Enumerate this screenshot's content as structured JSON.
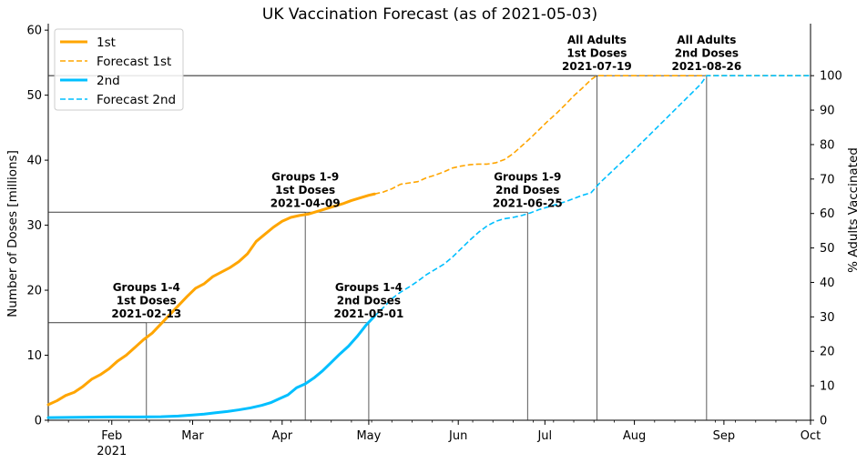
{
  "chart_data": {
    "type": "line",
    "title": "UK Vaccination Forecast (as of 2021-05-03)",
    "xlabel": "",
    "ylabel": "Number of Doses [millions]",
    "ylabel_right": "% Adults Vaccinated",
    "xlim": [
      "2021-01-10",
      "2021-10-01"
    ],
    "ylim": [
      0,
      61
    ],
    "ylim_right_equiv": {
      "percent_100_at_millions": 53
    },
    "x_ticks": [
      {
        "date": "2021-02-01",
        "label": "Feb",
        "sublabel": "2021"
      },
      {
        "date": "2021-03-01",
        "label": "Mar",
        "sublabel": ""
      },
      {
        "date": "2021-04-01",
        "label": "Apr",
        "sublabel": ""
      },
      {
        "date": "2021-05-01",
        "label": "May",
        "sublabel": ""
      },
      {
        "date": "2021-06-01",
        "label": "Jun",
        "sublabel": ""
      },
      {
        "date": "2021-07-01",
        "label": "Jul",
        "sublabel": ""
      },
      {
        "date": "2021-08-01",
        "label": "Aug",
        "sublabel": ""
      },
      {
        "date": "2021-09-01",
        "label": "Sep",
        "sublabel": ""
      },
      {
        "date": "2021-10-01",
        "label": "Oct",
        "sublabel": ""
      }
    ],
    "y_ticks": [
      0,
      10,
      20,
      30,
      40,
      50,
      60
    ],
    "y_ticks_right": [
      0,
      10,
      20,
      30,
      40,
      50,
      60,
      70,
      80,
      90,
      100
    ],
    "grid": false,
    "legend": "top-left",
    "series": [
      {
        "name": "1st",
        "style": "solid",
        "color": "#ffa500",
        "points": [
          [
            "2021-01-10",
            2.4
          ],
          [
            "2021-01-13",
            3.0
          ],
          [
            "2021-01-16",
            3.8
          ],
          [
            "2021-01-19",
            4.3
          ],
          [
            "2021-01-22",
            5.2
          ],
          [
            "2021-01-25",
            6.3
          ],
          [
            "2021-01-28",
            7.0
          ],
          [
            "2021-01-31",
            7.9
          ],
          [
            "2021-02-03",
            9.1
          ],
          [
            "2021-02-06",
            10.0
          ],
          [
            "2021-02-09",
            11.2
          ],
          [
            "2021-02-12",
            12.4
          ],
          [
            "2021-02-15",
            13.4
          ],
          [
            "2021-02-18",
            14.8
          ],
          [
            "2021-02-21",
            16.2
          ],
          [
            "2021-02-24",
            17.6
          ],
          [
            "2021-02-27",
            19.0
          ],
          [
            "2021-03-02",
            20.3
          ],
          [
            "2021-03-05",
            21.0
          ],
          [
            "2021-03-08",
            22.1
          ],
          [
            "2021-03-11",
            22.8
          ],
          [
            "2021-03-14",
            23.5
          ],
          [
            "2021-03-17",
            24.4
          ],
          [
            "2021-03-20",
            25.6
          ],
          [
            "2021-03-23",
            27.5
          ],
          [
            "2021-03-26",
            28.6
          ],
          [
            "2021-03-29",
            29.7
          ],
          [
            "2021-04-01",
            30.6
          ],
          [
            "2021-04-04",
            31.2
          ],
          [
            "2021-04-07",
            31.5
          ],
          [
            "2021-04-10",
            31.7
          ],
          [
            "2021-04-13",
            32.1
          ],
          [
            "2021-04-16",
            32.5
          ],
          [
            "2021-04-19",
            32.9
          ],
          [
            "2021-04-22",
            33.3
          ],
          [
            "2021-04-25",
            33.8
          ],
          [
            "2021-04-28",
            34.2
          ],
          [
            "2021-05-01",
            34.6
          ],
          [
            "2021-05-03",
            34.8
          ]
        ]
      },
      {
        "name": "Forecast 1st",
        "style": "dashed",
        "color": "#ffa500",
        "points": [
          [
            "2021-05-03",
            34.8
          ],
          [
            "2021-05-06",
            35.1
          ],
          [
            "2021-05-09",
            35.6
          ],
          [
            "2021-05-12",
            36.3
          ],
          [
            "2021-05-15",
            36.5
          ],
          [
            "2021-05-18",
            36.7
          ],
          [
            "2021-05-21",
            37.3
          ],
          [
            "2021-05-24",
            37.7
          ],
          [
            "2021-05-27",
            38.2
          ],
          [
            "2021-05-30",
            38.8
          ],
          [
            "2021-06-02",
            39.1
          ],
          [
            "2021-06-05",
            39.3
          ],
          [
            "2021-06-08",
            39.4
          ],
          [
            "2021-06-11",
            39.4
          ],
          [
            "2021-06-14",
            39.6
          ],
          [
            "2021-06-17",
            40.1
          ],
          [
            "2021-06-20",
            41.0
          ],
          [
            "2021-06-23",
            42.2
          ],
          [
            "2021-06-26",
            43.4
          ],
          [
            "2021-06-29",
            44.7
          ],
          [
            "2021-07-02",
            46.0
          ],
          [
            "2021-07-05",
            47.2
          ],
          [
            "2021-07-08",
            48.5
          ],
          [
            "2021-07-11",
            49.9
          ],
          [
            "2021-07-14",
            51.1
          ],
          [
            "2021-07-17",
            52.4
          ],
          [
            "2021-07-19",
            53.0
          ],
          [
            "2021-07-25",
            53.0
          ],
          [
            "2021-08-10",
            53.0
          ],
          [
            "2021-09-01",
            53.0
          ],
          [
            "2021-10-01",
            53.0
          ]
        ]
      },
      {
        "name": "2nd",
        "style": "solid",
        "color": "#00bfff",
        "points": [
          [
            "2021-01-10",
            0.4
          ],
          [
            "2021-01-20",
            0.45
          ],
          [
            "2021-02-01",
            0.5
          ],
          [
            "2021-02-10",
            0.5
          ],
          [
            "2021-02-18",
            0.55
          ],
          [
            "2021-02-24",
            0.65
          ],
          [
            "2021-03-01",
            0.8
          ],
          [
            "2021-03-05",
            0.95
          ],
          [
            "2021-03-09",
            1.15
          ],
          [
            "2021-03-13",
            1.35
          ],
          [
            "2021-03-17",
            1.6
          ],
          [
            "2021-03-21",
            1.9
          ],
          [
            "2021-03-25",
            2.3
          ],
          [
            "2021-03-28",
            2.7
          ],
          [
            "2021-03-31",
            3.3
          ],
          [
            "2021-04-03",
            3.9
          ],
          [
            "2021-04-06",
            5.0
          ],
          [
            "2021-04-09",
            5.6
          ],
          [
            "2021-04-12",
            6.5
          ],
          [
            "2021-04-15",
            7.6
          ],
          [
            "2021-04-18",
            8.9
          ],
          [
            "2021-04-21",
            10.2
          ],
          [
            "2021-04-24",
            11.4
          ],
          [
            "2021-04-27",
            12.9
          ],
          [
            "2021-04-30",
            14.6
          ],
          [
            "2021-05-03",
            16.0
          ]
        ]
      },
      {
        "name": "Forecast 2nd",
        "style": "dashed",
        "color": "#00bfff",
        "points": [
          [
            "2021-05-03",
            16.0
          ],
          [
            "2021-05-06",
            17.3
          ],
          [
            "2021-05-09",
            18.7
          ],
          [
            "2021-05-12",
            19.7
          ],
          [
            "2021-05-15",
            20.5
          ],
          [
            "2021-05-18",
            21.4
          ],
          [
            "2021-05-21",
            22.4
          ],
          [
            "2021-05-24",
            23.2
          ],
          [
            "2021-05-27",
            24.0
          ],
          [
            "2021-05-30",
            25.1
          ],
          [
            "2021-06-02",
            26.4
          ],
          [
            "2021-06-05",
            27.7
          ],
          [
            "2021-06-08",
            28.9
          ],
          [
            "2021-06-11",
            29.9
          ],
          [
            "2021-06-14",
            30.6
          ],
          [
            "2021-06-17",
            31.0
          ],
          [
            "2021-06-20",
            31.2
          ],
          [
            "2021-06-23",
            31.5
          ],
          [
            "2021-06-26",
            31.9
          ],
          [
            "2021-06-29",
            32.4
          ],
          [
            "2021-07-02",
            32.8
          ],
          [
            "2021-07-05",
            33.2
          ],
          [
            "2021-07-08",
            33.6
          ],
          [
            "2021-07-11",
            34.1
          ],
          [
            "2021-07-14",
            34.6
          ],
          [
            "2021-07-17",
            35.0
          ],
          [
            "2021-07-20",
            36.5
          ],
          [
            "2021-07-25",
            38.6
          ],
          [
            "2021-07-30",
            40.7
          ],
          [
            "2021-08-04",
            42.9
          ],
          [
            "2021-08-09",
            45.1
          ],
          [
            "2021-08-14",
            47.3
          ],
          [
            "2021-08-19",
            49.5
          ],
          [
            "2021-08-24",
            51.7
          ],
          [
            "2021-08-26",
            53.0
          ],
          [
            "2021-09-10",
            53.0
          ],
          [
            "2021-10-01",
            53.0
          ]
        ]
      }
    ],
    "annotations": [
      {
        "date": "2021-02-13",
        "value": 15,
        "lines": [
          "Groups 1-4",
          "1st Doses",
          "2021-02-13"
        ]
      },
      {
        "date": "2021-04-09",
        "value": 32,
        "lines": [
          "Groups 1-9",
          "1st Doses",
          "2021-04-09"
        ]
      },
      {
        "date": "2021-05-01",
        "value": 15,
        "lines": [
          "Groups 1-4",
          "2nd Doses",
          "2021-05-01"
        ]
      },
      {
        "date": "2021-06-25",
        "value": 32,
        "lines": [
          "Groups 1-9",
          "2nd Doses",
          "2021-06-25"
        ]
      },
      {
        "date": "2021-07-19",
        "value": 53,
        "lines": [
          "All Adults",
          "1st Doses",
          "2021-07-19"
        ]
      },
      {
        "date": "2021-08-26",
        "value": 53,
        "lines": [
          "All Adults",
          "2nd Doses",
          "2021-08-26"
        ]
      }
    ]
  }
}
